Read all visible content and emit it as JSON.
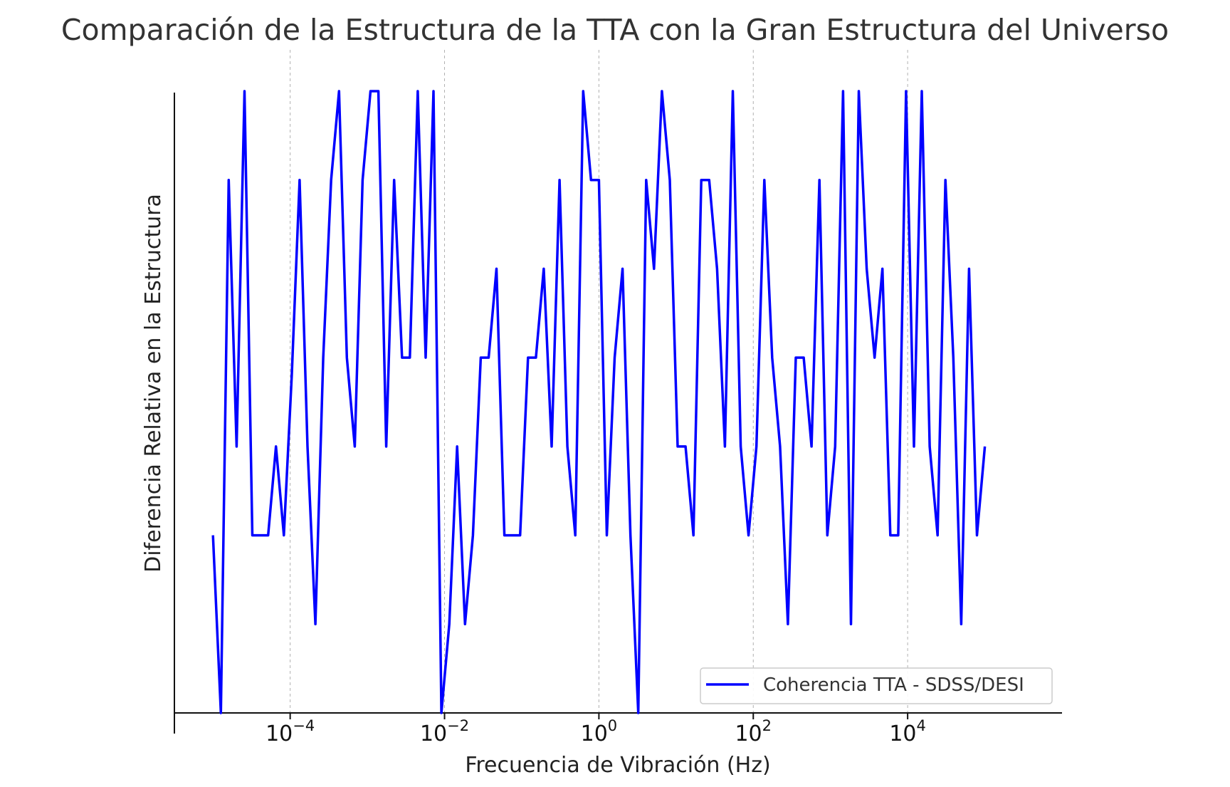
{
  "chart_data": {
    "type": "line",
    "title": "Comparación de la Estructura de la TTA con la Gran Estructura del Universo",
    "xlabel": "Frecuencia de Vibración (Hz)",
    "ylabel": "Diferencia Relativa en la Estructura",
    "x_scale": "log",
    "xlim_exp": [
      -5.5,
      6.0
    ],
    "ylim": [
      0,
      7
    ],
    "grid": "vertical-major",
    "legend_position": "lower-right",
    "x_ticks": [
      {
        "base": "10",
        "exp": "−4",
        "value_exp": -4
      },
      {
        "base": "10",
        "exp": "−2",
        "value_exp": -2
      },
      {
        "base": "10",
        "exp": "0",
        "value_exp": 0
      },
      {
        "base": "10",
        "exp": "2",
        "value_exp": 2
      },
      {
        "base": "10",
        "exp": "4",
        "value_exp": 4
      }
    ],
    "series": [
      {
        "name": "Coherencia TTA - SDSS/DESI",
        "color": "#0000ff",
        "x_start_exp": -5,
        "x_end_exp": 5,
        "values": [
          2,
          0,
          6,
          3,
          7,
          2,
          2,
          2,
          3,
          2,
          3.8,
          6,
          3,
          1,
          4,
          6,
          7,
          4,
          3,
          6,
          7,
          7,
          3,
          6,
          4,
          4,
          7,
          4,
          7,
          0,
          1,
          3,
          1,
          2,
          4,
          4,
          5,
          2,
          2,
          2,
          4,
          4,
          5,
          3,
          6,
          3,
          2,
          7,
          6,
          6,
          2,
          4,
          5,
          2,
          0,
          6,
          5,
          7,
          6,
          3,
          3,
          2,
          6,
          6,
          5,
          3,
          7,
          3,
          2,
          3,
          6,
          4,
          3,
          1,
          4,
          4,
          3,
          6,
          2,
          3,
          7,
          1,
          7,
          5,
          4,
          5,
          2,
          2,
          7,
          3,
          7,
          3,
          2,
          6,
          4,
          1,
          5,
          2,
          3
        ]
      }
    ]
  }
}
